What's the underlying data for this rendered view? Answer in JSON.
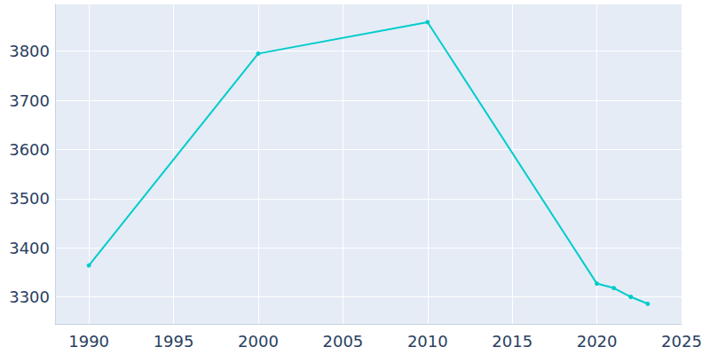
{
  "chart_data": {
    "type": "line",
    "x": [
      1990,
      2000,
      2010,
      2020,
      2021,
      2022,
      2023
    ],
    "values": [
      3364,
      3795,
      3859,
      3327,
      3318,
      3300,
      3286
    ],
    "color": "#00cccc",
    "marker": "circle",
    "line_style": "solid",
    "xlim": [
      1988,
      2025
    ],
    "xticks": [
      1990,
      1995,
      2000,
      2005,
      2010,
      2015,
      2020,
      2025
    ],
    "ylim": [
      3245,
      3895
    ],
    "yticks": [
      3300,
      3400,
      3500,
      3600,
      3700,
      3800
    ],
    "grid": true
  }
}
